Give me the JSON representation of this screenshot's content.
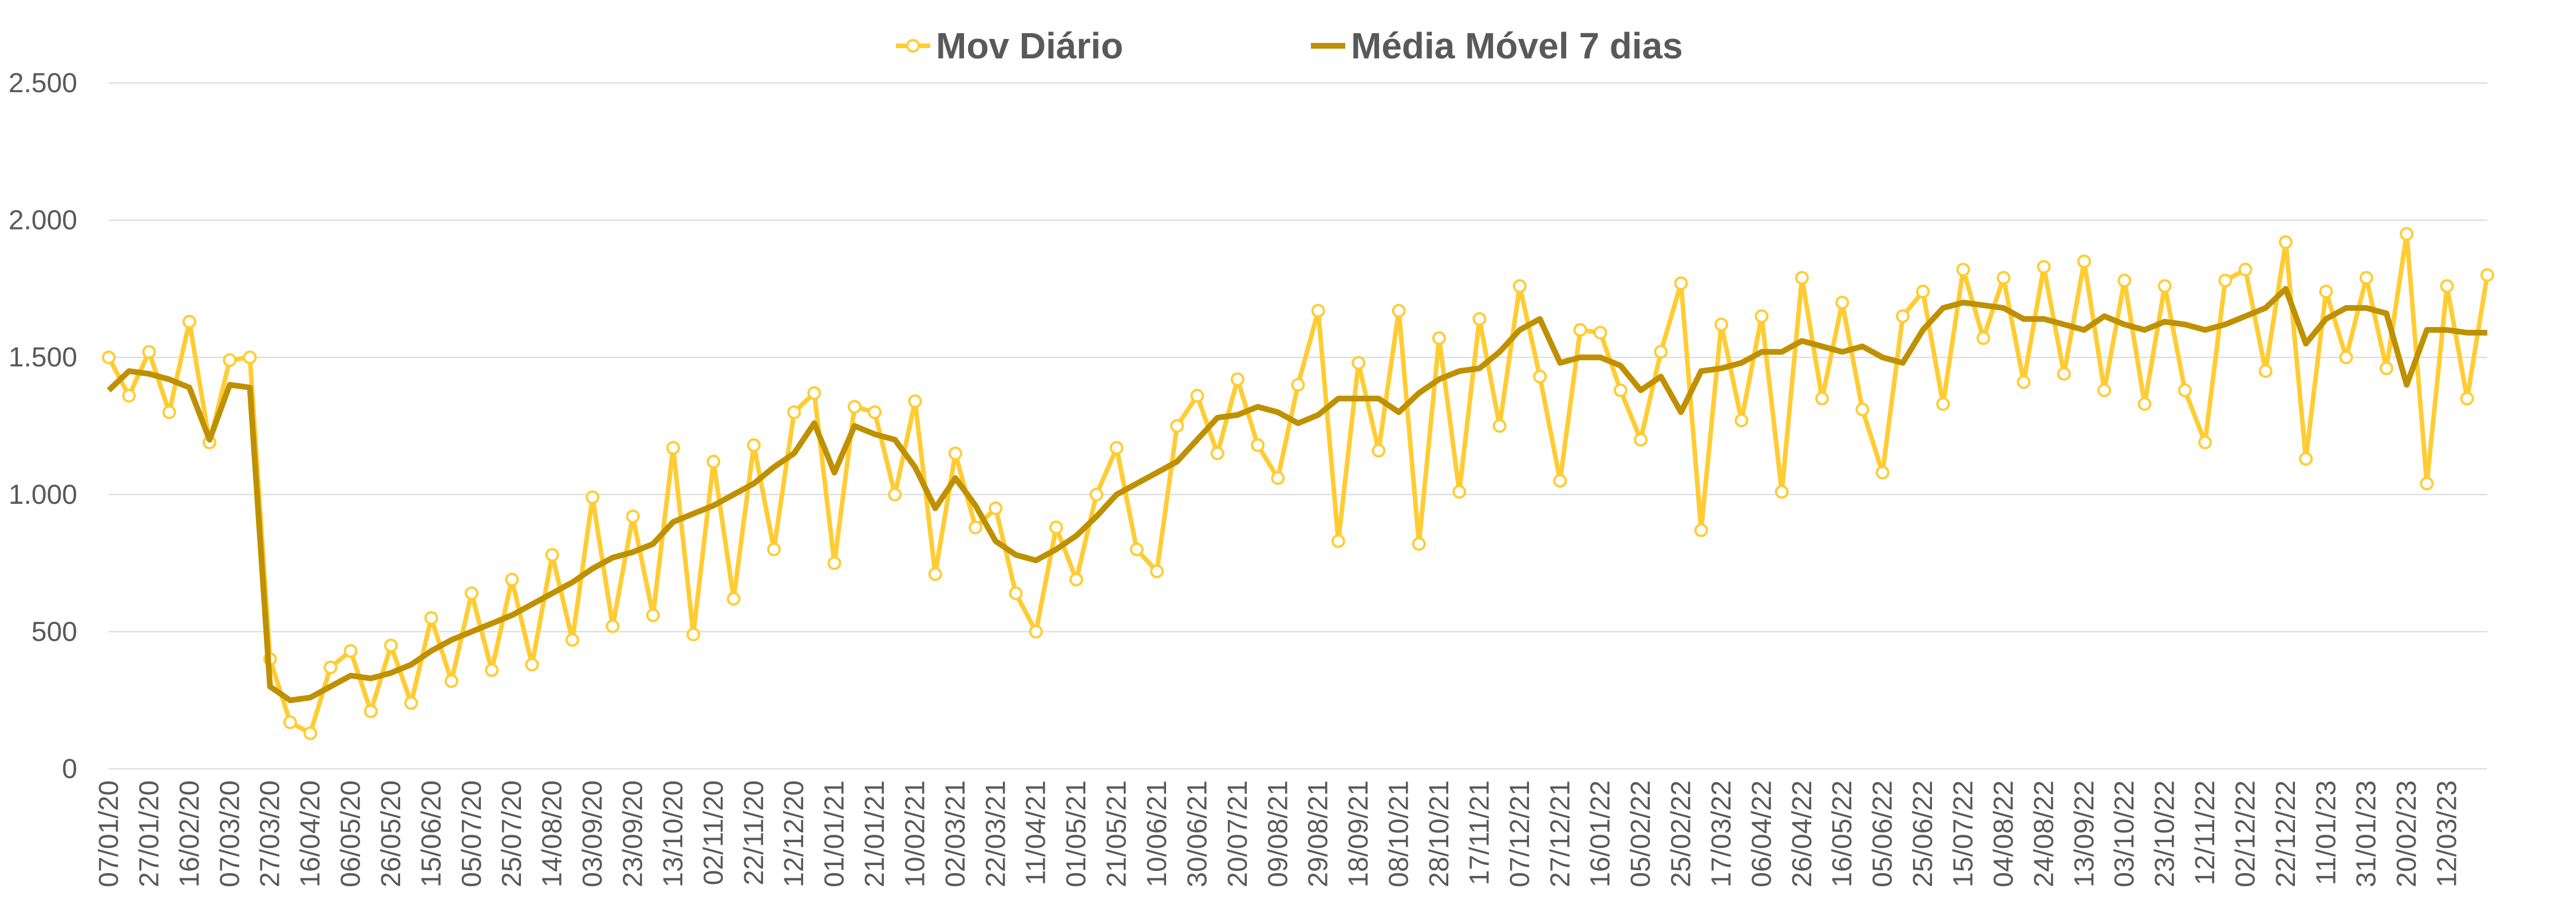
{
  "chart_data": {
    "type": "line",
    "categories": [
      "07/01/20",
      null,
      "27/01/20",
      null,
      "16/02/20",
      null,
      "07/03/20",
      null,
      "27/03/20",
      null,
      "16/04/20",
      null,
      "06/05/20",
      null,
      "26/05/20",
      null,
      "15/06/20",
      null,
      "05/07/20",
      null,
      "25/07/20",
      null,
      "14/08/20",
      null,
      "03/09/20",
      null,
      "23/09/20",
      null,
      "13/10/20",
      null,
      "02/11/20",
      null,
      "22/11/20",
      null,
      "12/12/20",
      null,
      "01/01/21",
      null,
      "21/01/21",
      null,
      "10/02/21",
      null,
      "02/03/21",
      null,
      "22/03/21",
      null,
      "11/04/21",
      null,
      "01/05/21",
      null,
      "21/05/21",
      null,
      "10/06/21",
      null,
      "30/06/21",
      null,
      "20/07/21",
      null,
      "09/08/21",
      null,
      "29/08/21",
      null,
      "18/09/21",
      null,
      "08/10/21",
      null,
      "28/10/21",
      null,
      "17/11/21",
      null,
      "07/12/21",
      null,
      "27/12/21",
      null,
      "16/01/22",
      null,
      "05/02/22",
      null,
      "25/02/22",
      null,
      "17/03/22",
      null,
      "06/04/22",
      null,
      "26/04/22",
      null,
      "16/05/22",
      null,
      "05/06/22",
      null,
      "25/06/22",
      null,
      "15/07/22",
      null,
      "04/08/22",
      null,
      "24/08/22",
      null,
      "13/09/22",
      null,
      "03/10/22",
      null,
      "23/10/22",
      null,
      "12/11/22",
      null,
      "02/12/22",
      null,
      "22/12/22",
      null,
      "11/01/23",
      null,
      "31/01/23",
      null,
      "20/02/23",
      null,
      "12/03/23",
      null,
      null
    ],
    "series": [
      {
        "name": "Mov Diário",
        "color": "#ffcc33",
        "marker": true,
        "values": [
          1500,
          1360,
          1520,
          1300,
          1630,
          1190,
          1490,
          1500,
          400,
          170,
          130,
          370,
          430,
          210,
          450,
          240,
          550,
          320,
          640,
          360,
          690,
          380,
          780,
          470,
          990,
          520,
          920,
          560,
          1170,
          490,
          1120,
          620,
          1180,
          800,
          1300,
          1370,
          750,
          1320,
          1300,
          1000,
          1340,
          710,
          1150,
          880,
          950,
          640,
          500,
          880,
          690,
          1000,
          1170,
          800,
          720,
          1250,
          1360,
          1150,
          1420,
          1180,
          1060,
          1400,
          1670,
          830,
          1480,
          1160,
          1670,
          820,
          1570,
          1010,
          1640,
          1250,
          1760,
          1430,
          1050,
          1600,
          1590,
          1380,
          1200,
          1520,
          1770,
          870,
          1620,
          1270,
          1650,
          1010,
          1790,
          1350,
          1700,
          1310,
          1080,
          1650,
          1740,
          1330,
          1820,
          1570,
          1790,
          1410,
          1830,
          1440,
          1850,
          1380,
          1780,
          1330,
          1760,
          1380,
          1190,
          1780,
          1820,
          1450,
          1920,
          1130,
          1740,
          1500,
          1790,
          1460,
          1950,
          1040,
          1760,
          1350,
          1800
        ]
      },
      {
        "name": "Média Móvel 7 dias",
        "color": "#bf9000",
        "marker": false,
        "values": [
          1380,
          1450,
          1440,
          1420,
          1390,
          1200,
          1400,
          1390,
          300,
          250,
          260,
          300,
          340,
          330,
          350,
          380,
          430,
          470,
          500,
          530,
          560,
          600,
          640,
          680,
          730,
          770,
          790,
          820,
          900,
          930,
          960,
          1000,
          1040,
          1100,
          1150,
          1260,
          1080,
          1250,
          1220,
          1200,
          1100,
          950,
          1060,
          960,
          830,
          780,
          760,
          800,
          850,
          920,
          1000,
          1040,
          1080,
          1120,
          1200,
          1280,
          1290,
          1320,
          1300,
          1260,
          1290,
          1350,
          1350,
          1350,
          1300,
          1370,
          1420,
          1450,
          1460,
          1520,
          1600,
          1640,
          1480,
          1500,
          1500,
          1470,
          1380,
          1430,
          1300,
          1450,
          1460,
          1480,
          1520,
          1520,
          1560,
          1540,
          1520,
          1540,
          1500,
          1480,
          1600,
          1680,
          1700,
          1690,
          1680,
          1640,
          1640,
          1620,
          1600,
          1650,
          1620,
          1600,
          1630,
          1620,
          1600,
          1620,
          1650,
          1680,
          1750,
          1550,
          1640,
          1680,
          1680,
          1660,
          1400,
          1600,
          1600,
          1590,
          1590
        ]
      }
    ],
    "ylim": [
      0,
      2500
    ],
    "yticks": [
      0,
      500,
      {
        "value": 1000,
        "label": "1.000"
      },
      {
        "value": 1500,
        "label": "1.500"
      },
      {
        "value": 2000,
        "label": "2.000"
      },
      {
        "value": 2500,
        "label": "2.500"
      }
    ],
    "grid": true,
    "legend": "top"
  }
}
